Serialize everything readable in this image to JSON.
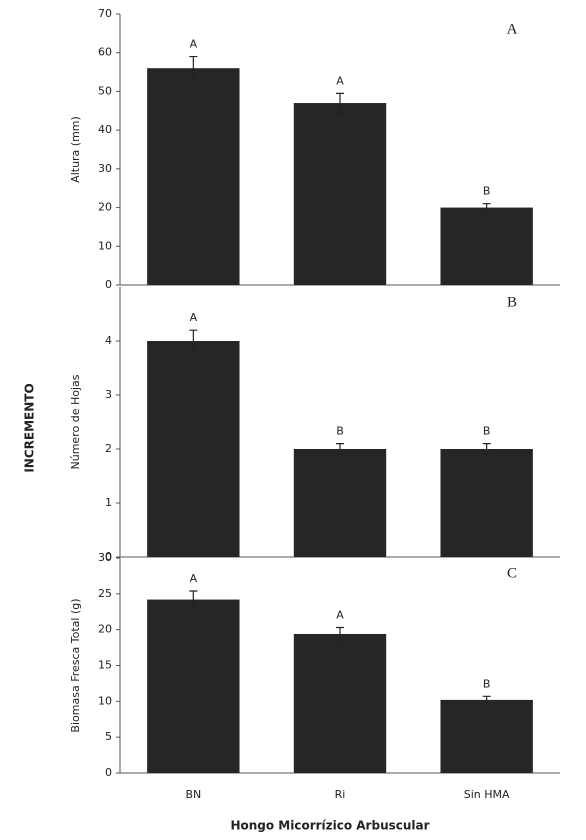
{
  "figure": {
    "ylabel": "INCREMENTO",
    "xlabel": "Hongo Micorrízico Arbuscular"
  },
  "chart_data": [
    {
      "type": "bar",
      "ylabel": "Altura (mm)",
      "panel_label": "A",
      "color": "#262626",
      "values": [
        56,
        47,
        20
      ],
      "errors": [
        3,
        2.5,
        1
      ],
      "annotations": [
        "A",
        "A",
        "B"
      ],
      "ylim": [
        0,
        70
      ],
      "yticks": [
        0,
        10,
        20,
        30,
        40,
        50,
        60,
        70
      ]
    },
    {
      "type": "bar",
      "ylabel": "Número de Hojas",
      "panel_label": "B",
      "color": "#262626",
      "values": [
        4,
        2,
        2
      ],
      "errors": [
        0.2,
        0.1,
        0.1
      ],
      "annotations": [
        "A",
        "B",
        "B"
      ],
      "ylim": [
        0,
        5
      ],
      "yticks": [
        0,
        1,
        2,
        3,
        4
      ]
    },
    {
      "type": "bar",
      "ylabel": "Biomasa Fresca Total (g)",
      "panel_label": "C",
      "color": "#262626",
      "categories": [
        "BN",
        "Ri",
        "Sin HMA"
      ],
      "values": [
        24.2,
        19.4,
        10.2
      ],
      "errors": [
        1.2,
        0.9,
        0.5
      ],
      "annotations": [
        "A",
        "A",
        "B"
      ],
      "ylim": [
        0,
        30
      ],
      "yticks": [
        0,
        5,
        10,
        15,
        20,
        25,
        30
      ]
    }
  ]
}
